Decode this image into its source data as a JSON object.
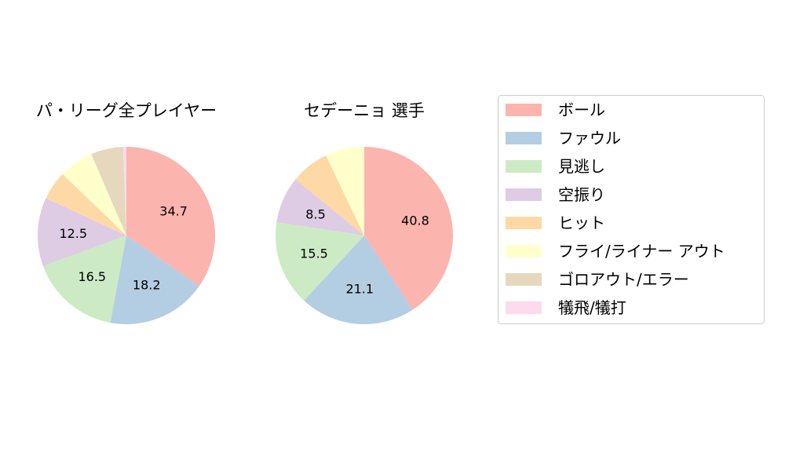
{
  "chart_data": {
    "type": "pie",
    "categories": [
      "ボール",
      "ファウル",
      "見逃し",
      "空振り",
      "ヒット",
      "フライ/ライナー アウト",
      "ゴロアウト/エラー",
      "犠飛/犠打"
    ],
    "colors": [
      "#fbb4ae",
      "#b3cde3",
      "#ccebc5",
      "#decbe4",
      "#fed9a6",
      "#ffffcc",
      "#e5d8bd",
      "#fddaec"
    ],
    "legend_position": "right",
    "start_angle_deg": 90,
    "direction": "clockwise",
    "label_min_pct": 8,
    "pies": [
      {
        "title": "パ・リーグ全プレイヤー",
        "values": [
          34.7,
          18.2,
          16.5,
          12.5,
          5.3,
          6.3,
          5.9,
          0.6
        ],
        "labels": [
          "34.7",
          "18.2",
          "16.5",
          "12.5",
          "",
          "",
          "",
          ""
        ]
      },
      {
        "title": "セデーニョ  選手",
        "values": [
          40.8,
          21.1,
          15.5,
          8.5,
          7.0,
          7.1,
          0.0,
          0.0
        ],
        "labels": [
          "40.8",
          "21.1",
          "15.5",
          "8.5",
          "",
          "",
          "",
          ""
        ]
      }
    ]
  }
}
